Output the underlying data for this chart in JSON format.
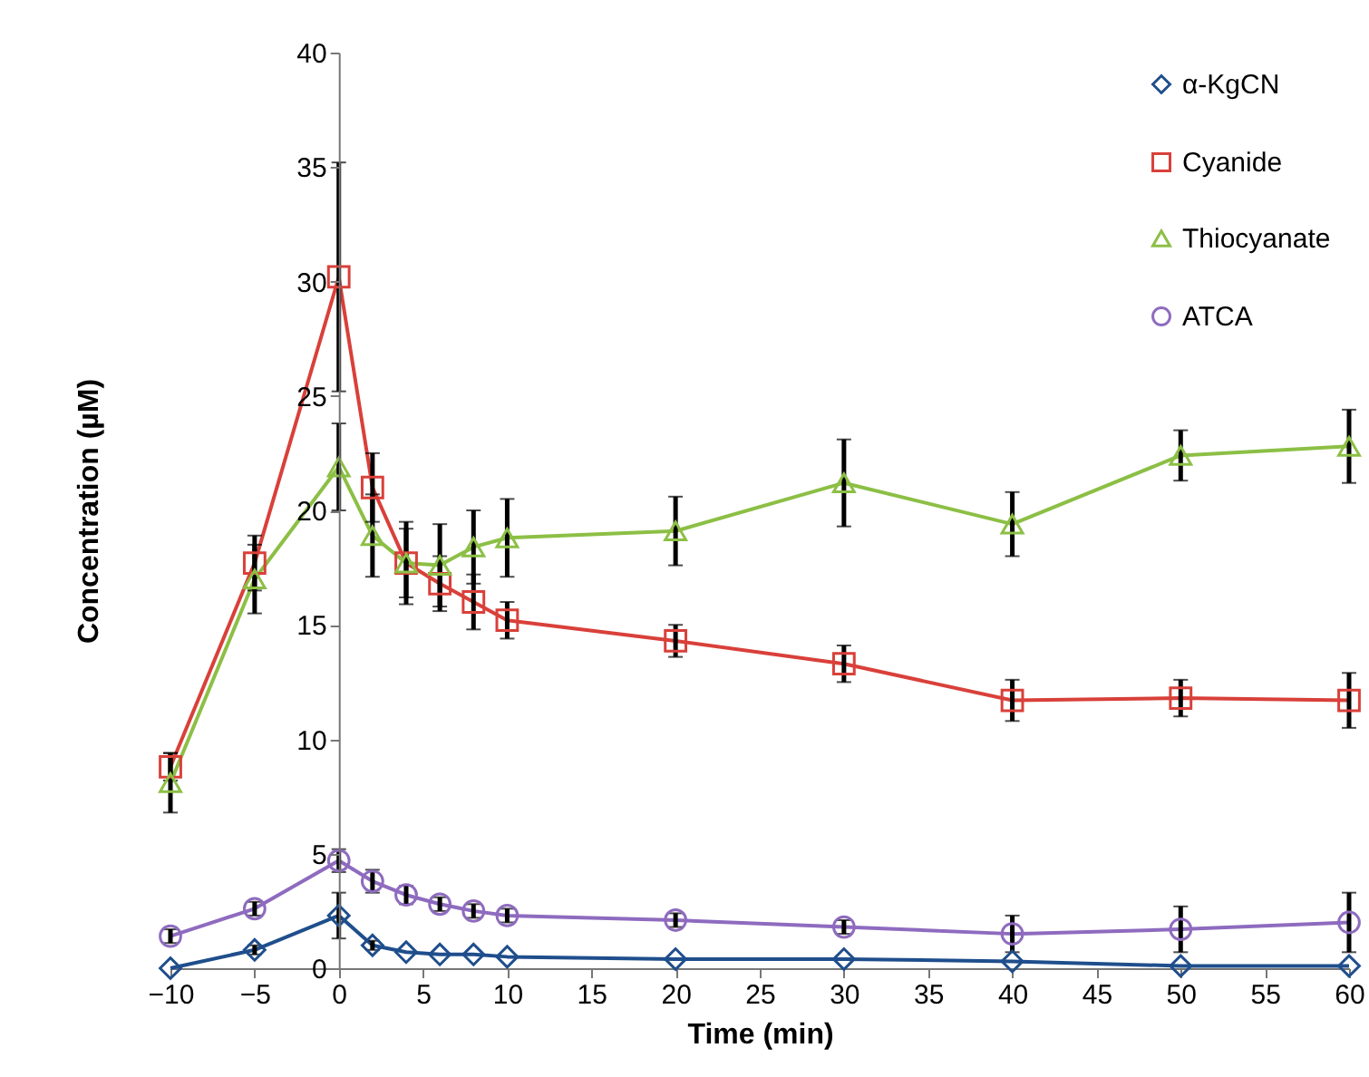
{
  "chart_data": {
    "type": "line",
    "xlabel": "Time (min)",
    "ylabel": "Concentration (µM)",
    "x": [
      -10,
      -5,
      0,
      2,
      4,
      6,
      8,
      10,
      20,
      30,
      40,
      50,
      60
    ],
    "xlim": [
      -10,
      60
    ],
    "xticks": [
      -10,
      -5,
      0,
      5,
      10,
      15,
      20,
      25,
      30,
      35,
      40,
      45,
      50,
      55,
      60
    ],
    "ylim": [
      0,
      40
    ],
    "yticks": [
      0,
      5,
      10,
      15,
      20,
      25,
      30,
      35,
      40
    ],
    "grid": false,
    "legend": "top right",
    "series": [
      {
        "name": "α-KgCN",
        "color": "#1f4e8c",
        "marker": "diamond",
        "values": [
          0,
          0.8,
          2.3,
          1.0,
          0.7,
          0.6,
          0.6,
          0.5,
          0.4,
          0.4,
          0.3,
          0.1,
          0.1
        ],
        "errors": [
          null,
          0.2,
          1.0,
          0.2,
          null,
          null,
          null,
          null,
          null,
          null,
          null,
          null,
          null
        ]
      },
      {
        "name": "Cyanide",
        "color": "#d9403a",
        "marker": "square",
        "values": [
          8.8,
          17.7,
          30.2,
          21.0,
          17.7,
          16.8,
          16.0,
          15.2,
          14.3,
          13.3,
          11.7,
          11.8,
          11.7
        ],
        "errors": [
          0.6,
          1.2,
          5.0,
          1.5,
          1.5,
          1.2,
          1.2,
          0.8,
          0.7,
          0.8,
          0.9,
          0.8,
          1.2
        ]
      },
      {
        "name": "Thiocyanate",
        "color": "#8cbf45",
        "marker": "triangle",
        "values": [
          8.1,
          17.0,
          21.9,
          18.9,
          17.7,
          17.6,
          18.4,
          18.8,
          19.1,
          21.2,
          19.4,
          22.4,
          22.8
        ],
        "errors": [
          1.3,
          1.5,
          1.9,
          1.8,
          1.8,
          1.8,
          1.6,
          1.7,
          1.5,
          1.9,
          1.4,
          1.1,
          1.6
        ]
      },
      {
        "name": "ATCA",
        "color": "#8e6bbf",
        "marker": "circle",
        "values": [
          1.4,
          2.6,
          4.7,
          3.8,
          3.2,
          2.8,
          2.5,
          2.3,
          2.1,
          1.8,
          1.5,
          1.7,
          2.0
        ],
        "errors": [
          0.3,
          0.3,
          0.5,
          0.5,
          0.4,
          0.3,
          0.3,
          0.3,
          0.3,
          0.3,
          0.8,
          1.0,
          1.3
        ]
      }
    ]
  }
}
